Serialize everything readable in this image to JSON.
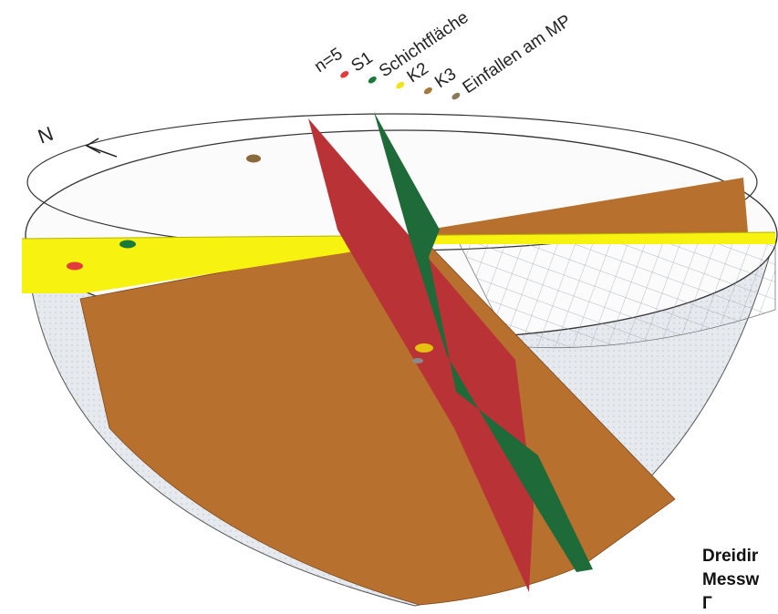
{
  "north_label": "N",
  "legend": {
    "count_label": "n=5",
    "items": [
      {
        "label": "S1",
        "color": "#e23b3b"
      },
      {
        "label": "Schichtfläche",
        "color": "#1a7a3a"
      },
      {
        "label": "K2",
        "color": "#f2e21a"
      },
      {
        "label": "K3",
        "color": "#a8783a"
      },
      {
        "label": "Einfallen am MP",
        "color": "#8a7a5a"
      }
    ]
  },
  "planes": [
    {
      "name": "S1",
      "color": "#b83236"
    },
    {
      "name": "Schichtfläche",
      "color": "#1e6a38"
    },
    {
      "name": "K2",
      "color": "#f7f20f"
    },
    {
      "name": "K3",
      "color": "#b8702e"
    }
  ],
  "caption": {
    "line1": "Dreidir",
    "line2": "Messw",
    "line3": "Г"
  }
}
